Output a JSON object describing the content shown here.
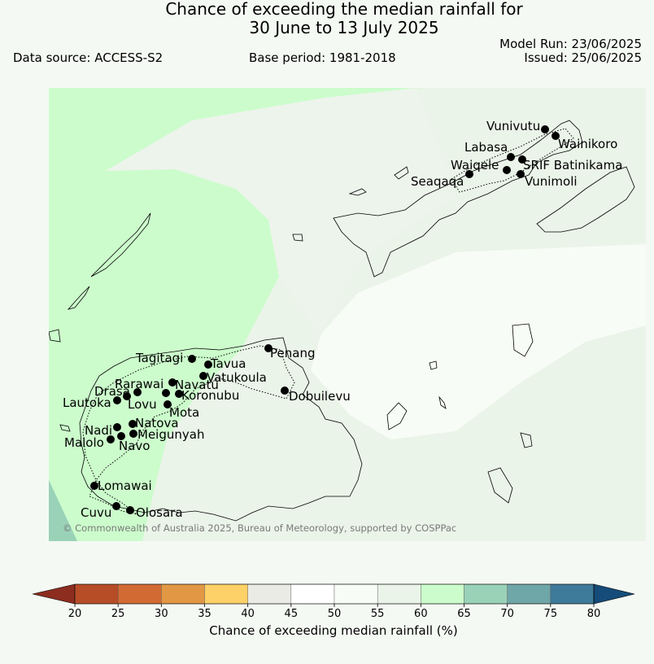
{
  "title": {
    "line1": "Chance of exceeding the median rainfall for",
    "line2": "30 June to 13 July 2025"
  },
  "header": {
    "data_source": "Data source: ACCESS-S2",
    "base_period": "Base period: 1981-2018",
    "model_run": "Model Run: 23/06/2025",
    "issued": "Issued: 25/06/2025"
  },
  "map": {
    "copyright": "© Commonwealth of Australia 2025, Bureau of Meteorology, supported by COSPPac",
    "stations": [
      "Vunivutu",
      "Wainikoro",
      "Labasa",
      "Waiqele",
      "SRIF Batinikama",
      "Seaqaqa",
      "Vunimoli",
      "Tagitagi",
      "Tavua",
      "Penang",
      "Vatukoula",
      "Rarawai",
      "Navatu",
      "Koronubu",
      "Drasa",
      "Lovu",
      "Lautoka",
      "Mota",
      "Dobuilevu",
      "Natova",
      "Nadi",
      "Meigunyah",
      "Malolo",
      "Navo",
      "Lomawai",
      "Cuvu",
      "Olosara"
    ]
  },
  "colorbar": {
    "label": "Chance of exceeding median rainfall (%)",
    "ticks": [
      "20",
      "25",
      "30",
      "35",
      "40",
      "45",
      "50",
      "55",
      "60",
      "65",
      "70",
      "75",
      "80"
    ],
    "colors": [
      "#8c2d1f",
      "#b64d27",
      "#d16b33",
      "#e29744",
      "#fdd068",
      "#ebebe6",
      "#ffffff",
      "#f8fcf6",
      "#eaf4e8",
      "#ccfccc",
      "#9ad2b8",
      "#6fa6a8",
      "#3e7a99",
      "#154c79"
    ]
  }
}
